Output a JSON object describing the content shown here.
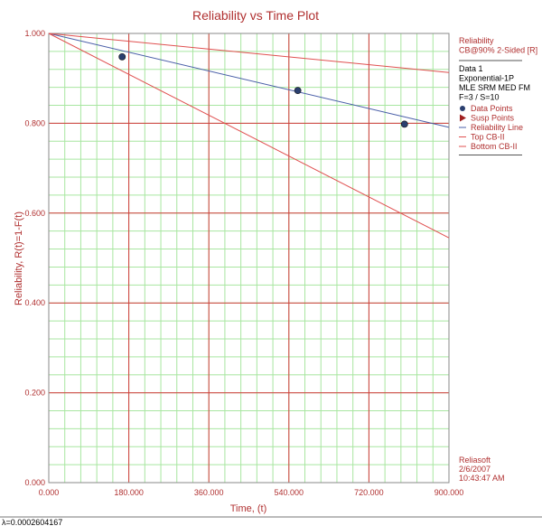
{
  "chart_data": {
    "type": "line",
    "title": "Reliability vs Time Plot",
    "xlabel": "Time, (t)",
    "ylabel": "Reliability, R(t)=1-F(t)",
    "xlim": [
      0,
      900
    ],
    "ylim": [
      0,
      1
    ],
    "x_major_ticks": [
      0,
      180,
      360,
      540,
      720,
      900
    ],
    "x_tick_labels": [
      "0.000",
      "180.000",
      "360.000",
      "540.000",
      "720.000",
      "900.000"
    ],
    "y_major_ticks": [
      0,
      0.2,
      0.4,
      0.6,
      0.8,
      1.0
    ],
    "y_tick_labels": [
      "0.000",
      "0.200",
      "0.400",
      "0.600",
      "0.800",
      "1.000"
    ],
    "minor_grid_x_step": 36,
    "minor_grid_y_step": 0.04,
    "grid": true,
    "lambda": 0.0002604167,
    "series": [
      {
        "name": "Data Points",
        "kind": "scatter",
        "color": "#2a3f6f",
        "x": [
          165,
          560,
          800
        ],
        "y": [
          0.948,
          0.873,
          0.798
        ]
      },
      {
        "name": "Reliability Line",
        "kind": "line",
        "color": "#4a5fa8",
        "x": [
          0,
          900
        ],
        "y": [
          1.0,
          0.791
        ]
      },
      {
        "name": "Top CB-II",
        "kind": "line",
        "color": "#e05050",
        "x": [
          0,
          900
        ],
        "y": [
          1.0,
          0.913
        ]
      },
      {
        "name": "Bottom CB-II",
        "kind": "line",
        "color": "#e05050",
        "x": [
          0,
          900
        ],
        "y": [
          1.0,
          0.545
        ]
      }
    ],
    "legend": {
      "placement": "right",
      "header_lines": [
        "Reliability",
        "CB@90% 2-Sided [R]"
      ],
      "info_lines": [
        "Data 1",
        "Exponential-1P",
        "MLE SRM MED FM",
        "F=3 / S=10"
      ],
      "entries": [
        {
          "label": "Data Points",
          "symbol": "dot",
          "color": "#2a3f6f"
        },
        {
          "label": "Susp Points",
          "symbol": "triangle",
          "color": "#a02020"
        },
        {
          "label": "Reliability Line",
          "symbol": "line",
          "color": "#4a5fa8"
        },
        {
          "label": "Top CB-II",
          "symbol": "line",
          "color": "#e05050"
        },
        {
          "label": "Bottom CB-II",
          "symbol": "line",
          "color": "#e05050"
        }
      ],
      "footer_lines": [
        "Reliasoft",
        "2/6/2007",
        "10:43:47 AM"
      ]
    },
    "footnote": "λ=0.0002604167"
  },
  "colors": {
    "major_grid": "#d23c3c",
    "minor_grid": "#a8e6a0",
    "frame": "#8a8a8a",
    "label_text": "#b03030"
  }
}
